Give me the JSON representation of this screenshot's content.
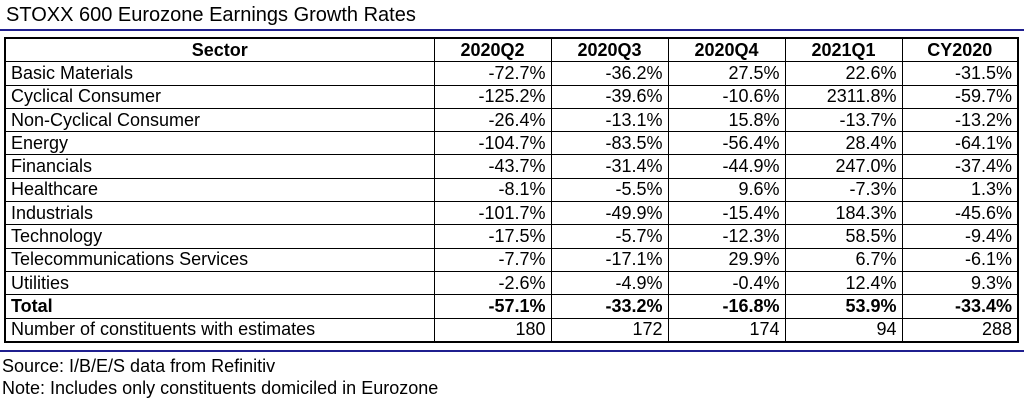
{
  "title": "STOXX 600 Eurozone Earnings Growth Rates",
  "columns": [
    "Sector",
    "2020Q2",
    "2020Q3",
    "2020Q4",
    "2021Q1",
    "CY2020"
  ],
  "rows": [
    [
      "Basic Materials",
      "-72.7%",
      "-36.2%",
      "27.5%",
      "22.6%",
      "-31.5%"
    ],
    [
      "Cyclical Consumer",
      "-125.2%",
      "-39.6%",
      "-10.6%",
      "2311.8%",
      "-59.7%"
    ],
    [
      "Non-Cyclical Consumer",
      "-26.4%",
      "-13.1%",
      "15.8%",
      "-13.7%",
      "-13.2%"
    ],
    [
      "Energy",
      "-104.7%",
      "-83.5%",
      "-56.4%",
      "28.4%",
      "-64.1%"
    ],
    [
      "Financials",
      "-43.7%",
      "-31.4%",
      "-44.9%",
      "247.0%",
      "-37.4%"
    ],
    [
      "Healthcare",
      "-8.1%",
      "-5.5%",
      "9.6%",
      "-7.3%",
      "1.3%"
    ],
    [
      "Industrials",
      "-101.7%",
      "-49.9%",
      "-15.4%",
      "184.3%",
      "-45.6%"
    ],
    [
      "Technology",
      "-17.5%",
      "-5.7%",
      "-12.3%",
      "58.5%",
      "-9.4%"
    ],
    [
      "Telecommunications Services",
      "-7.7%",
      "-17.1%",
      "29.9%",
      "6.7%",
      "-6.1%"
    ],
    [
      "Utilities",
      "-2.6%",
      "-4.9%",
      "-0.4%",
      "12.4%",
      "9.3%"
    ]
  ],
  "total_row": [
    "Total",
    "-57.1%",
    "-33.2%",
    "-16.8%",
    "53.9%",
    "-33.4%"
  ],
  "constituents_row": [
    "Number of constituents with estimates",
    "180",
    "172",
    "174",
    "94",
    "288"
  ],
  "source": "Source: I/B/E/S data from Refinitiv",
  "note": "Note: Includes only constituents domiciled in Eurozone",
  "colors": {
    "rule": "#1f1f8f",
    "grid": "#000000"
  }
}
